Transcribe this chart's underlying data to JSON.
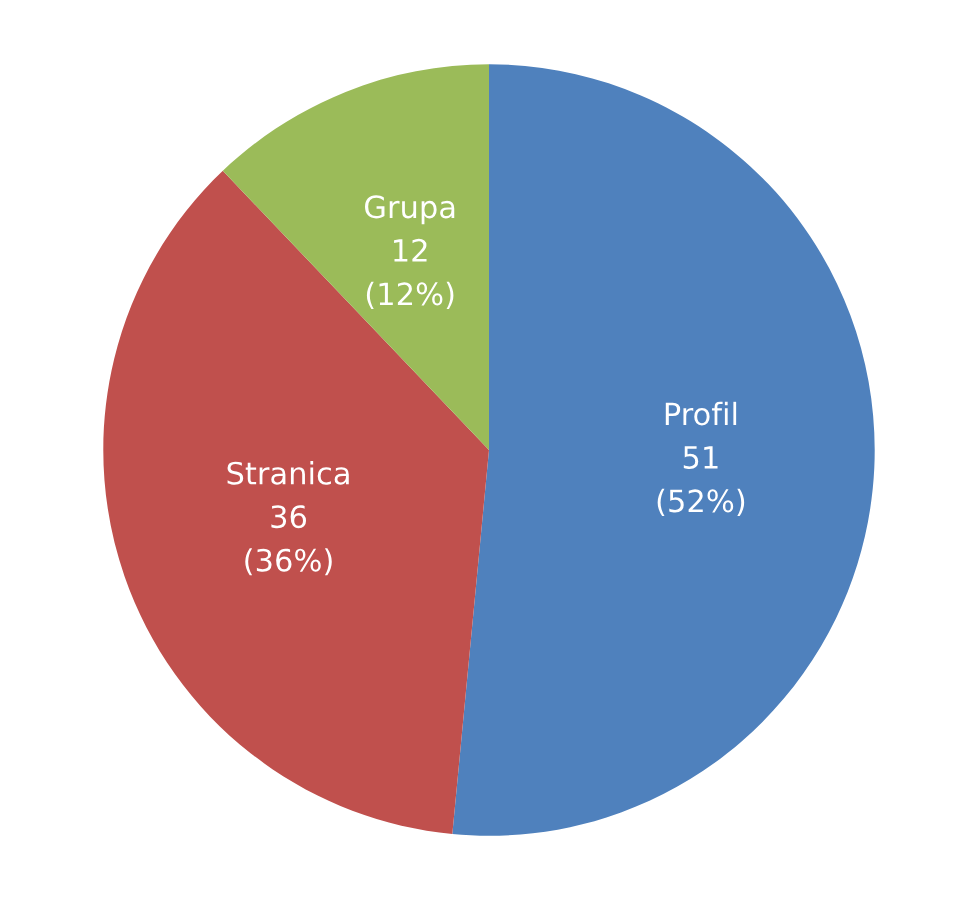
{
  "chart_data": {
    "type": "pie",
    "categories": [
      "Profil",
      "Stranica",
      "Grupa"
    ],
    "values": [
      51,
      36,
      12
    ],
    "colors": [
      "#4f81bd",
      "#c0504d",
      "#9bbb59"
    ],
    "value_labels": [
      "51\n(52%)",
      "36\n(36%)",
      "12\n(12%)"
    ],
    "legend": false
  }
}
